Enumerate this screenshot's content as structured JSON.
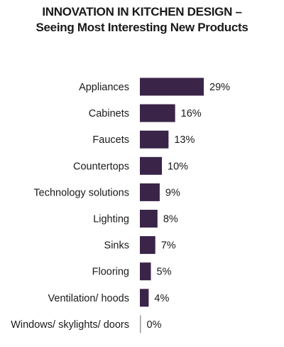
{
  "chart_data": {
    "type": "bar",
    "orientation": "horizontal",
    "title": "INNOVATION IN KITCHEN DESIGN –",
    "subtitle": "Seeing Most Interesting New Products",
    "categories": [
      "Appliances",
      "Cabinets",
      "Faucets",
      "Countertops",
      "Technology solutions",
      "Lighting",
      "Sinks",
      "Flooring",
      "Ventilation/ hoods",
      "Windows/ skylights/ doors"
    ],
    "values": [
      29,
      16,
      13,
      10,
      9,
      8,
      7,
      5,
      4,
      0
    ],
    "value_labels": [
      "29%",
      "16%",
      "13%",
      "10%",
      "9%",
      "8%",
      "7%",
      "5%",
      "4%",
      "0%"
    ],
    "unit": "%",
    "xlim": [
      0,
      29
    ],
    "grid": false,
    "bar_color": "#3a2448"
  }
}
